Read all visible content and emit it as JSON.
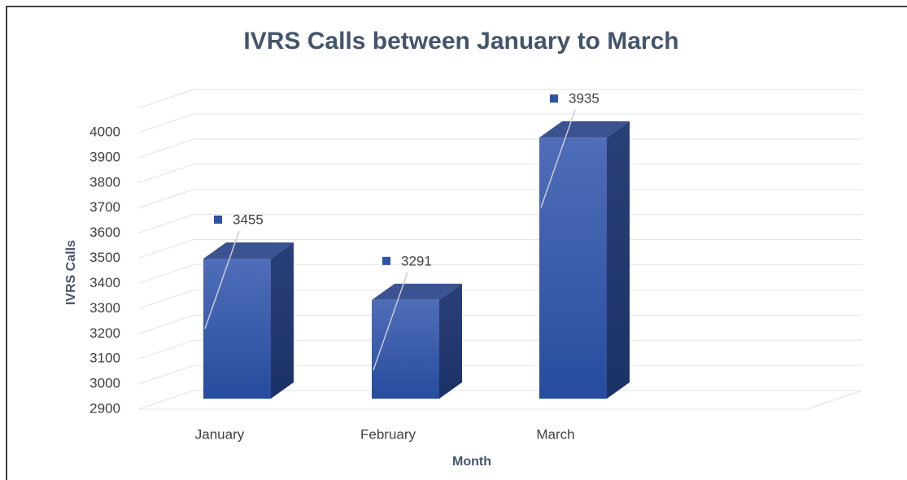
{
  "chart_data": {
    "type": "bar3d",
    "title": "IVRS Calls between January to March",
    "categories": [
      "January",
      "February",
      "March"
    ],
    "values": [
      3455,
      3291,
      3935
    ],
    "color": "#2f53a3",
    "ylim": [
      2900,
      4000
    ],
    "yticks": [
      2900,
      3000,
      3100,
      3200,
      3300,
      3400,
      3500,
      3600,
      3700,
      3800,
      3900,
      4000
    ],
    "xlabel": "Month",
    "ylabel": "IVRS Calls",
    "grid": true
  }
}
